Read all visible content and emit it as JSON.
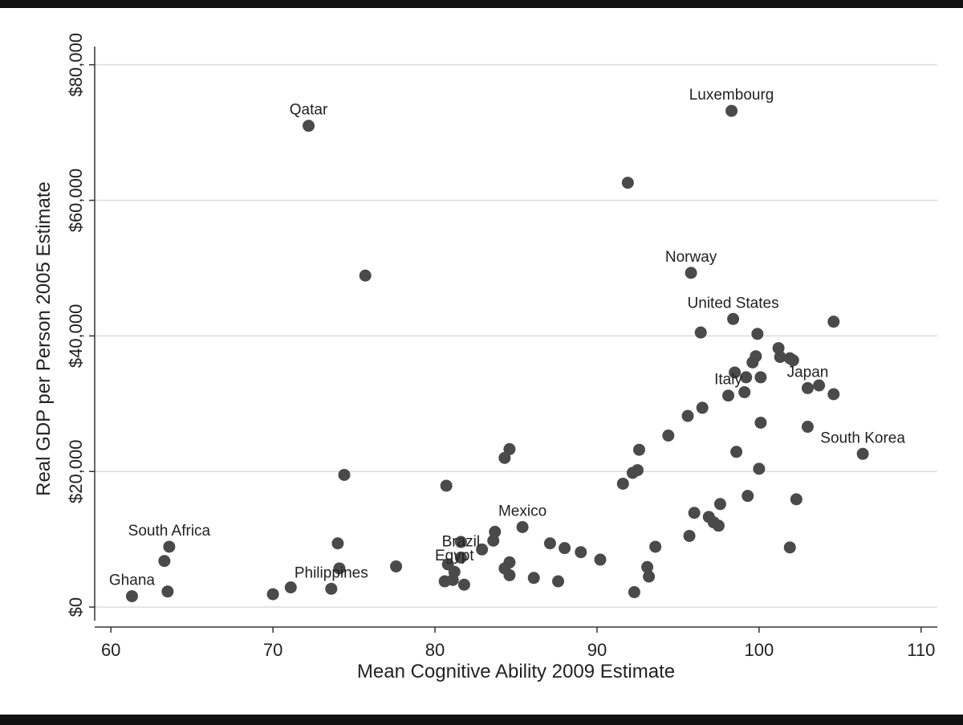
{
  "chart_data": {
    "type": "scatter",
    "xlabel": "Mean Cognitive Ability 2009 Estimate",
    "ylabel": "Real GDP per Person 2005 Estimate",
    "xlim": [
      59,
      111
    ],
    "ylim": [
      -2000,
      81500
    ],
    "xticks": [
      60,
      70,
      80,
      90,
      100,
      110
    ],
    "xtick_labels": [
      "60",
      "70",
      "80",
      "90",
      "100",
      "110"
    ],
    "yticks": [
      0,
      20000,
      40000,
      60000,
      80000
    ],
    "ytick_labels": [
      "$0",
      "$20,000",
      "$40,000",
      "$60,000",
      "$80,000"
    ],
    "grid": "horizontal",
    "marker_color": "#4a4a4a",
    "points": [
      {
        "x": 72.2,
        "y": 71000,
        "label": "Qatar"
      },
      {
        "x": 98.3,
        "y": 73200,
        "label": "Luxembourg"
      },
      {
        "x": 91.9,
        "y": 62600
      },
      {
        "x": 95.8,
        "y": 49300,
        "label": "Norway"
      },
      {
        "x": 75.7,
        "y": 48900
      },
      {
        "x": 98.4,
        "y": 42500,
        "label": "United States"
      },
      {
        "x": 104.6,
        "y": 42100
      },
      {
        "x": 96.4,
        "y": 40500
      },
      {
        "x": 99.9,
        "y": 40300
      },
      {
        "x": 101.2,
        "y": 38200
      },
      {
        "x": 99.8,
        "y": 37000
      },
      {
        "x": 101.3,
        "y": 36900
      },
      {
        "x": 101.9,
        "y": 36700
      },
      {
        "x": 102.1,
        "y": 36400
      },
      {
        "x": 99.6,
        "y": 36100
      },
      {
        "x": 98.5,
        "y": 34600
      },
      {
        "x": 99.2,
        "y": 33900
      },
      {
        "x": 100.1,
        "y": 33900
      },
      {
        "x": 103.0,
        "y": 32300,
        "label": "Japan"
      },
      {
        "x": 103.7,
        "y": 32700
      },
      {
        "x": 99.1,
        "y": 31700
      },
      {
        "x": 104.6,
        "y": 31400
      },
      {
        "x": 98.1,
        "y": 31200,
        "label": "Italy"
      },
      {
        "x": 96.5,
        "y": 29400
      },
      {
        "x": 95.6,
        "y": 28200
      },
      {
        "x": 100.1,
        "y": 27200
      },
      {
        "x": 103.0,
        "y": 26600
      },
      {
        "x": 94.4,
        "y": 25300
      },
      {
        "x": 84.6,
        "y": 23300
      },
      {
        "x": 92.6,
        "y": 23200
      },
      {
        "x": 98.6,
        "y": 22900
      },
      {
        "x": 106.4,
        "y": 22600,
        "label": "South Korea"
      },
      {
        "x": 84.3,
        "y": 22000
      },
      {
        "x": 100.0,
        "y": 20400
      },
      {
        "x": 92.5,
        "y": 20200
      },
      {
        "x": 92.2,
        "y": 19800
      },
      {
        "x": 74.4,
        "y": 19500
      },
      {
        "x": 91.6,
        "y": 18200
      },
      {
        "x": 80.7,
        "y": 17900
      },
      {
        "x": 99.3,
        "y": 16400
      },
      {
        "x": 102.3,
        "y": 15900
      },
      {
        "x": 97.6,
        "y": 15200
      },
      {
        "x": 96.0,
        "y": 13900
      },
      {
        "x": 96.9,
        "y": 13300
      },
      {
        "x": 97.2,
        "y": 12500
      },
      {
        "x": 97.5,
        "y": 12000
      },
      {
        "x": 85.4,
        "y": 11800,
        "label": "Mexico"
      },
      {
        "x": 83.7,
        "y": 11100
      },
      {
        "x": 95.7,
        "y": 10500
      },
      {
        "x": 74.0,
        "y": 9400
      },
      {
        "x": 83.6,
        "y": 9800
      },
      {
        "x": 81.6,
        "y": 9600
      },
      {
        "x": 87.1,
        "y": 9400
      },
      {
        "x": 93.6,
        "y": 8900
      },
      {
        "x": 101.9,
        "y": 8800
      },
      {
        "x": 63.6,
        "y": 8900,
        "label": "South Africa"
      },
      {
        "x": 88.0,
        "y": 8700
      },
      {
        "x": 82.9,
        "y": 8500
      },
      {
        "x": 89.0,
        "y": 8100
      },
      {
        "x": 81.6,
        "y": 7300,
        "label": "Brazil"
      },
      {
        "x": 90.2,
        "y": 7000
      },
      {
        "x": 63.3,
        "y": 6800
      },
      {
        "x": 84.6,
        "y": 6600
      },
      {
        "x": 80.8,
        "y": 6300
      },
      {
        "x": 77.6,
        "y": 6000
      },
      {
        "x": 93.1,
        "y": 5900
      },
      {
        "x": 74.1,
        "y": 5700
      },
      {
        "x": 84.3,
        "y": 5700
      },
      {
        "x": 81.2,
        "y": 5200,
        "label": "Egypt"
      },
      {
        "x": 84.6,
        "y": 4700
      },
      {
        "x": 93.2,
        "y": 4500
      },
      {
        "x": 86.1,
        "y": 4300
      },
      {
        "x": 80.6,
        "y": 3800
      },
      {
        "x": 87.6,
        "y": 3800
      },
      {
        "x": 81.1,
        "y": 4000
      },
      {
        "x": 81.8,
        "y": 3300
      },
      {
        "x": 71.1,
        "y": 2900
      },
      {
        "x": 73.6,
        "y": 2700,
        "label": "Philippines"
      },
      {
        "x": 63.5,
        "y": 2300
      },
      {
        "x": 92.3,
        "y": 2200
      },
      {
        "x": 70.0,
        "y": 1900
      },
      {
        "x": 61.3,
        "y": 1600,
        "label": "Ghana"
      }
    ]
  }
}
